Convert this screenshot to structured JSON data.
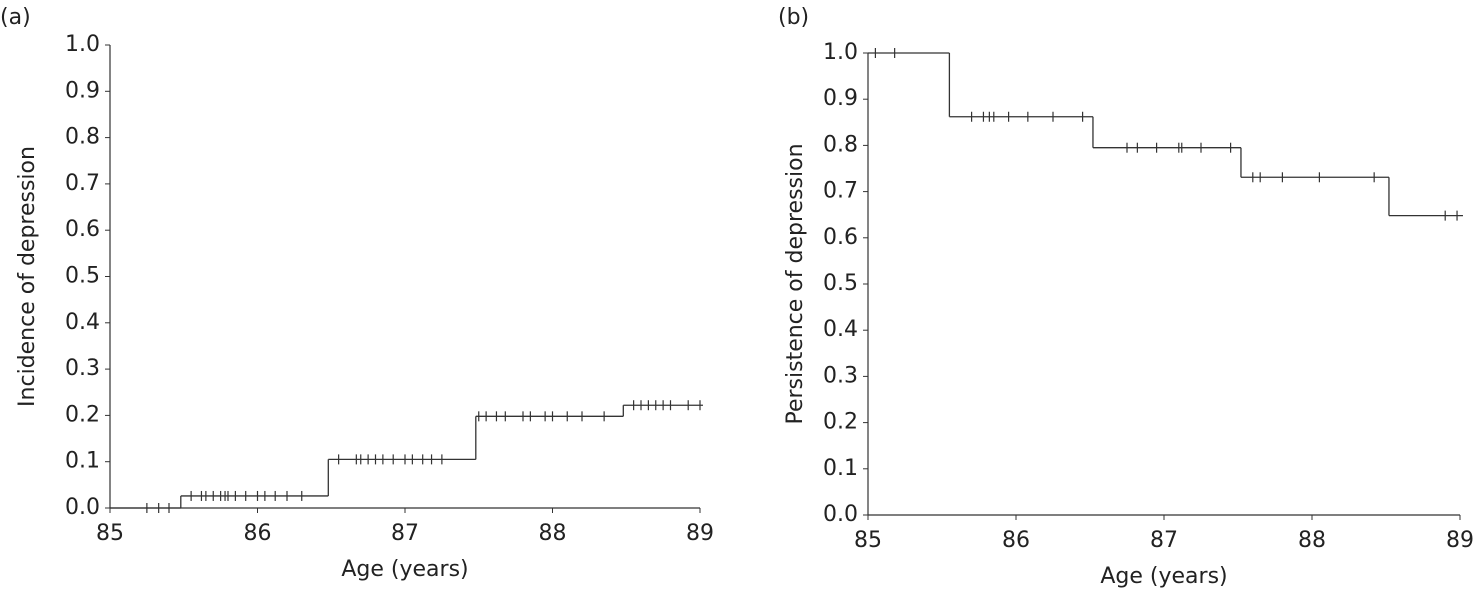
{
  "chart_data": [
    {
      "type": "step",
      "panel": "(a)",
      "x_label": "Age (years)",
      "y_label": "Incidence of depression",
      "xlim": [
        85,
        89
      ],
      "ylim": [
        0,
        1
      ],
      "xticks": [
        85,
        86,
        87,
        88,
        89
      ],
      "yticks": [
        {
          "value": 0,
          "label": "0.0"
        },
        0.1,
        0.2,
        0.3,
        0.4,
        0.5,
        0.6,
        0.7,
        0.8,
        0.9,
        {
          "value": 1,
          "label": "1.0"
        }
      ],
      "color": "#333333",
      "x": [
        85,
        85.48,
        86.48,
        87.48,
        88.48,
        89.02
      ],
      "values": [
        0,
        0.026,
        0.105,
        0.198,
        0.222,
        0.222
      ],
      "censor_x": [
        85.25,
        85.33,
        85.4,
        85.55,
        85.62,
        85.65,
        85.7,
        85.75,
        85.78,
        85.8,
        85.85,
        85.92,
        86.0,
        86.05,
        86.12,
        86.2,
        86.3,
        86.55,
        86.67,
        86.7,
        86.75,
        86.8,
        86.85,
        86.92,
        87.0,
        87.05,
        87.12,
        87.18,
        87.25,
        87.5,
        87.55,
        87.62,
        87.68,
        87.8,
        87.85,
        87.95,
        88.0,
        88.1,
        88.2,
        88.35,
        88.55,
        88.6,
        88.65,
        88.7,
        88.75,
        88.8,
        88.92,
        89.0
      ],
      "censor_values": [
        0,
        0,
        0,
        0.026,
        0.026,
        0.026,
        0.026,
        0.026,
        0.026,
        0.026,
        0.026,
        0.026,
        0.026,
        0.026,
        0.026,
        0.026,
        0.026,
        0.105,
        0.105,
        0.105,
        0.105,
        0.105,
        0.105,
        0.105,
        0.105,
        0.105,
        0.105,
        0.105,
        0.105,
        0.198,
        0.198,
        0.198,
        0.198,
        0.198,
        0.198,
        0.198,
        0.198,
        0.198,
        0.198,
        0.198,
        0.222,
        0.222,
        0.222,
        0.222,
        0.222,
        0.222,
        0.222,
        0.222
      ]
    },
    {
      "type": "step",
      "panel": "(b)",
      "x_label": "Age (years)",
      "y_label": "Persistence of depression",
      "xlim": [
        85,
        89
      ],
      "ylim": [
        0,
        1
      ],
      "xticks": [
        85,
        86,
        87,
        88,
        89
      ],
      "yticks": [
        {
          "value": 0,
          "label": "0.0"
        },
        0.1,
        0.2,
        0.3,
        0.4,
        0.5,
        0.6,
        0.7,
        0.8,
        0.9,
        {
          "value": 1,
          "label": "1.0"
        }
      ],
      "color": "#333333",
      "x": [
        85,
        85.55,
        86.52,
        87.52,
        88.52,
        89.02
      ],
      "values": [
        1,
        0.862,
        0.795,
        0.731,
        0.648,
        0.648
      ],
      "censor_x": [
        85.05,
        85.18,
        85.7,
        85.78,
        85.82,
        85.85,
        85.95,
        86.08,
        86.25,
        86.45,
        86.75,
        86.82,
        86.95,
        87.1,
        87.12,
        87.25,
        87.45,
        87.6,
        87.65,
        87.8,
        88.05,
        88.42,
        88.9,
        88.98
      ],
      "censor_values": [
        1,
        1,
        0.862,
        0.862,
        0.862,
        0.862,
        0.862,
        0.862,
        0.862,
        0.862,
        0.795,
        0.795,
        0.795,
        0.795,
        0.795,
        0.795,
        0.795,
        0.731,
        0.731,
        0.731,
        0.731,
        0.731,
        0.648,
        0.648
      ]
    }
  ]
}
